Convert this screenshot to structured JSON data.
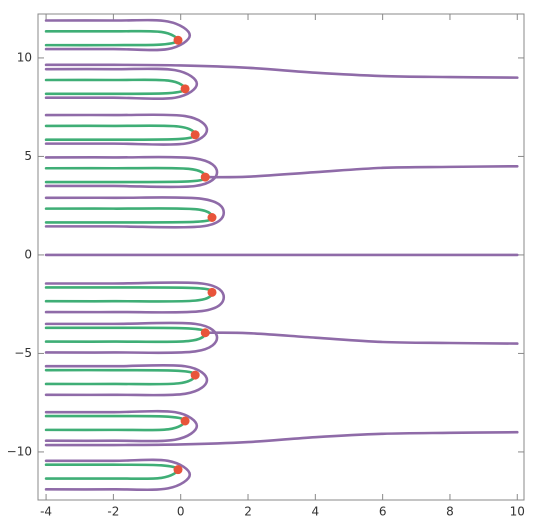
{
  "chart_data": {
    "type": "line",
    "xlim": [
      -4.24,
      10.2
    ],
    "ylim": [
      -12.44,
      12.23
    ],
    "xticks": [
      -4,
      -2,
      0,
      2,
      4,
      6,
      8,
      10
    ],
    "yticks": [
      {
        "value": -10,
        "label": "−10"
      },
      {
        "value": -5,
        "label": "−5"
      },
      0,
      5,
      10
    ],
    "series": [
      {
        "color": "#8f6ba8",
        "x": [
          -4,
          10
        ],
        "values": [
          0,
          0
        ]
      },
      {
        "color": "#8f6ba8",
        "x": [
          -4,
          -2,
          0,
          2,
          4,
          6,
          8,
          10
        ],
        "values": [
          9.65,
          9.65,
          9.62,
          9.5,
          9.25,
          9.08,
          9.03,
          9.0
        ]
      },
      {
        "color": "#8f6ba8",
        "x": [
          0.73,
          2,
          4,
          6,
          8,
          10
        ],
        "values": [
          3.95,
          3.97,
          4.2,
          4.42,
          4.47,
          4.5
        ]
      },
      {
        "color": "#8f6ba8",
        "x": [
          0.73,
          2,
          4,
          6,
          8,
          10
        ],
        "values": [
          -3.95,
          -3.97,
          -4.2,
          -4.42,
          -4.47,
          -4.5
        ]
      },
      {
        "color": "#8f6ba8",
        "x": [
          -4,
          -2,
          0,
          2,
          4,
          6,
          8,
          10
        ],
        "values": [
          -9.65,
          -9.65,
          -9.62,
          -9.5,
          -9.25,
          -9.08,
          -9.03,
          -9.0
        ]
      },
      {
        "color": "#8f6ba8",
        "x": [
          -4,
          -2,
          -0.38,
          0.27,
          -0.38,
          -2,
          -4
        ],
        "values": [
          11.9,
          11.9,
          11.85,
          11.15,
          10.45,
          10.45,
          10.45
        ]
      },
      {
        "color": "#3fae76",
        "x": [
          -4,
          -2,
          -0.58,
          -0.08,
          -0.58,
          -2,
          -4
        ],
        "values": [
          11.35,
          11.35,
          11.32,
          10.9,
          10.68,
          10.65,
          10.65
        ]
      },
      {
        "color": "#8f6ba8",
        "x": [
          -4,
          -2,
          -0.17,
          0.48,
          -0.17,
          -2,
          -4
        ],
        "values": [
          9.43,
          9.43,
          9.38,
          8.68,
          7.98,
          7.98,
          7.98
        ]
      },
      {
        "color": "#3fae76",
        "x": [
          -4,
          -2,
          -0.37,
          0.13,
          -0.37,
          -2,
          -4
        ],
        "values": [
          8.88,
          8.88,
          8.85,
          8.43,
          8.21,
          8.18,
          8.18
        ]
      },
      {
        "color": "#8f6ba8",
        "x": [
          -4,
          -2,
          0.13,
          0.78,
          0.13,
          -2,
          -4
        ],
        "values": [
          7.1,
          7.1,
          7.05,
          6.35,
          5.65,
          5.65,
          5.65
        ]
      },
      {
        "color": "#3fae76",
        "x": [
          -4,
          -2,
          -0.07,
          0.43,
          -0.07,
          -2,
          -4
        ],
        "values": [
          6.55,
          6.55,
          6.52,
          6.1,
          5.88,
          5.85,
          5.85
        ]
      },
      {
        "color": "#8f6ba8",
        "x": [
          -4,
          -2,
          0.43,
          1.08,
          0.43,
          -2,
          -4
        ],
        "values": [
          4.95,
          4.95,
          4.9,
          4.2,
          3.5,
          3.5,
          3.5
        ]
      },
      {
        "color": "#3fae76",
        "x": [
          -4,
          -2,
          0.23,
          0.73,
          0.23,
          -2,
          -4
        ],
        "values": [
          4.4,
          4.4,
          4.37,
          3.95,
          3.73,
          3.7,
          3.7
        ]
      },
      {
        "color": "#8f6ba8",
        "x": [
          -4,
          -2,
          0.63,
          1.28,
          0.63,
          -2,
          -4
        ],
        "values": [
          2.9,
          2.9,
          2.85,
          2.15,
          1.45,
          1.45,
          1.45
        ]
      },
      {
        "color": "#3fae76",
        "x": [
          -4,
          -2,
          0.43,
          0.93,
          0.43,
          -2,
          -4
        ],
        "values": [
          2.35,
          2.35,
          2.32,
          1.9,
          1.68,
          1.65,
          1.65
        ]
      },
      {
        "color": "#8f6ba8",
        "x": [
          -4,
          -2,
          -0.38,
          0.27,
          -0.38,
          -2,
          -4
        ],
        "values": [
          -11.9,
          -11.9,
          -11.85,
          -11.15,
          -10.45,
          -10.45,
          -10.45
        ]
      },
      {
        "color": "#3fae76",
        "x": [
          -4,
          -2,
          -0.58,
          -0.08,
          -0.58,
          -2,
          -4
        ],
        "values": [
          -11.35,
          -11.35,
          -11.32,
          -10.9,
          -10.68,
          -10.65,
          -10.65
        ]
      },
      {
        "color": "#8f6ba8",
        "x": [
          -4,
          -2,
          -0.17,
          0.48,
          -0.17,
          -2,
          -4
        ],
        "values": [
          -9.43,
          -9.43,
          -9.38,
          -8.68,
          -7.98,
          -7.98,
          -7.98
        ]
      },
      {
        "color": "#3fae76",
        "x": [
          -4,
          -2,
          -0.37,
          0.13,
          -0.37,
          -2,
          -4
        ],
        "values": [
          -8.88,
          -8.88,
          -8.85,
          -8.43,
          -8.21,
          -8.18,
          -8.18
        ]
      },
      {
        "color": "#8f6ba8",
        "x": [
          -4,
          -2,
          0.13,
          0.78,
          0.13,
          -2,
          -4
        ],
        "values": [
          -7.1,
          -7.1,
          -7.05,
          -6.35,
          -5.65,
          -5.65,
          -5.65
        ]
      },
      {
        "color": "#3fae76",
        "x": [
          -4,
          -2,
          -0.07,
          0.43,
          -0.07,
          -2,
          -4
        ],
        "values": [
          -6.55,
          -6.55,
          -6.52,
          -6.1,
          -5.88,
          -5.85,
          -5.85
        ]
      },
      {
        "color": "#8f6ba8",
        "x": [
          -4,
          -2,
          0.43,
          1.08,
          0.43,
          -2,
          -4
        ],
        "values": [
          -4.95,
          -4.95,
          -4.9,
          -4.2,
          -3.5,
          -3.5,
          -3.5
        ]
      },
      {
        "color": "#3fae76",
        "x": [
          -4,
          -2,
          0.23,
          0.73,
          0.23,
          -2,
          -4
        ],
        "values": [
          -4.4,
          -4.4,
          -4.37,
          -3.95,
          -3.73,
          -3.7,
          -3.7
        ]
      },
      {
        "color": "#8f6ba8",
        "x": [
          -4,
          -2,
          0.63,
          1.28,
          0.63,
          -2,
          -4
        ],
        "values": [
          -2.9,
          -2.9,
          -2.85,
          -2.15,
          -1.45,
          -1.45,
          -1.45
        ]
      },
      {
        "color": "#3fae76",
        "x": [
          -4,
          -2,
          0.43,
          0.93,
          0.43,
          -2,
          -4
        ],
        "values": [
          -2.35,
          -2.35,
          -2.32,
          -1.9,
          -1.68,
          -1.65,
          -1.65
        ]
      }
    ],
    "points": {
      "color": "#e8543a",
      "x": [
        -0.08,
        0.13,
        0.43,
        0.73,
        0.93,
        0.93,
        0.73,
        0.43,
        0.13,
        -0.08
      ],
      "values": [
        10.9,
        8.43,
        6.1,
        3.95,
        1.9,
        -1.9,
        -3.95,
        -6.1,
        -8.43,
        -10.9
      ]
    }
  }
}
